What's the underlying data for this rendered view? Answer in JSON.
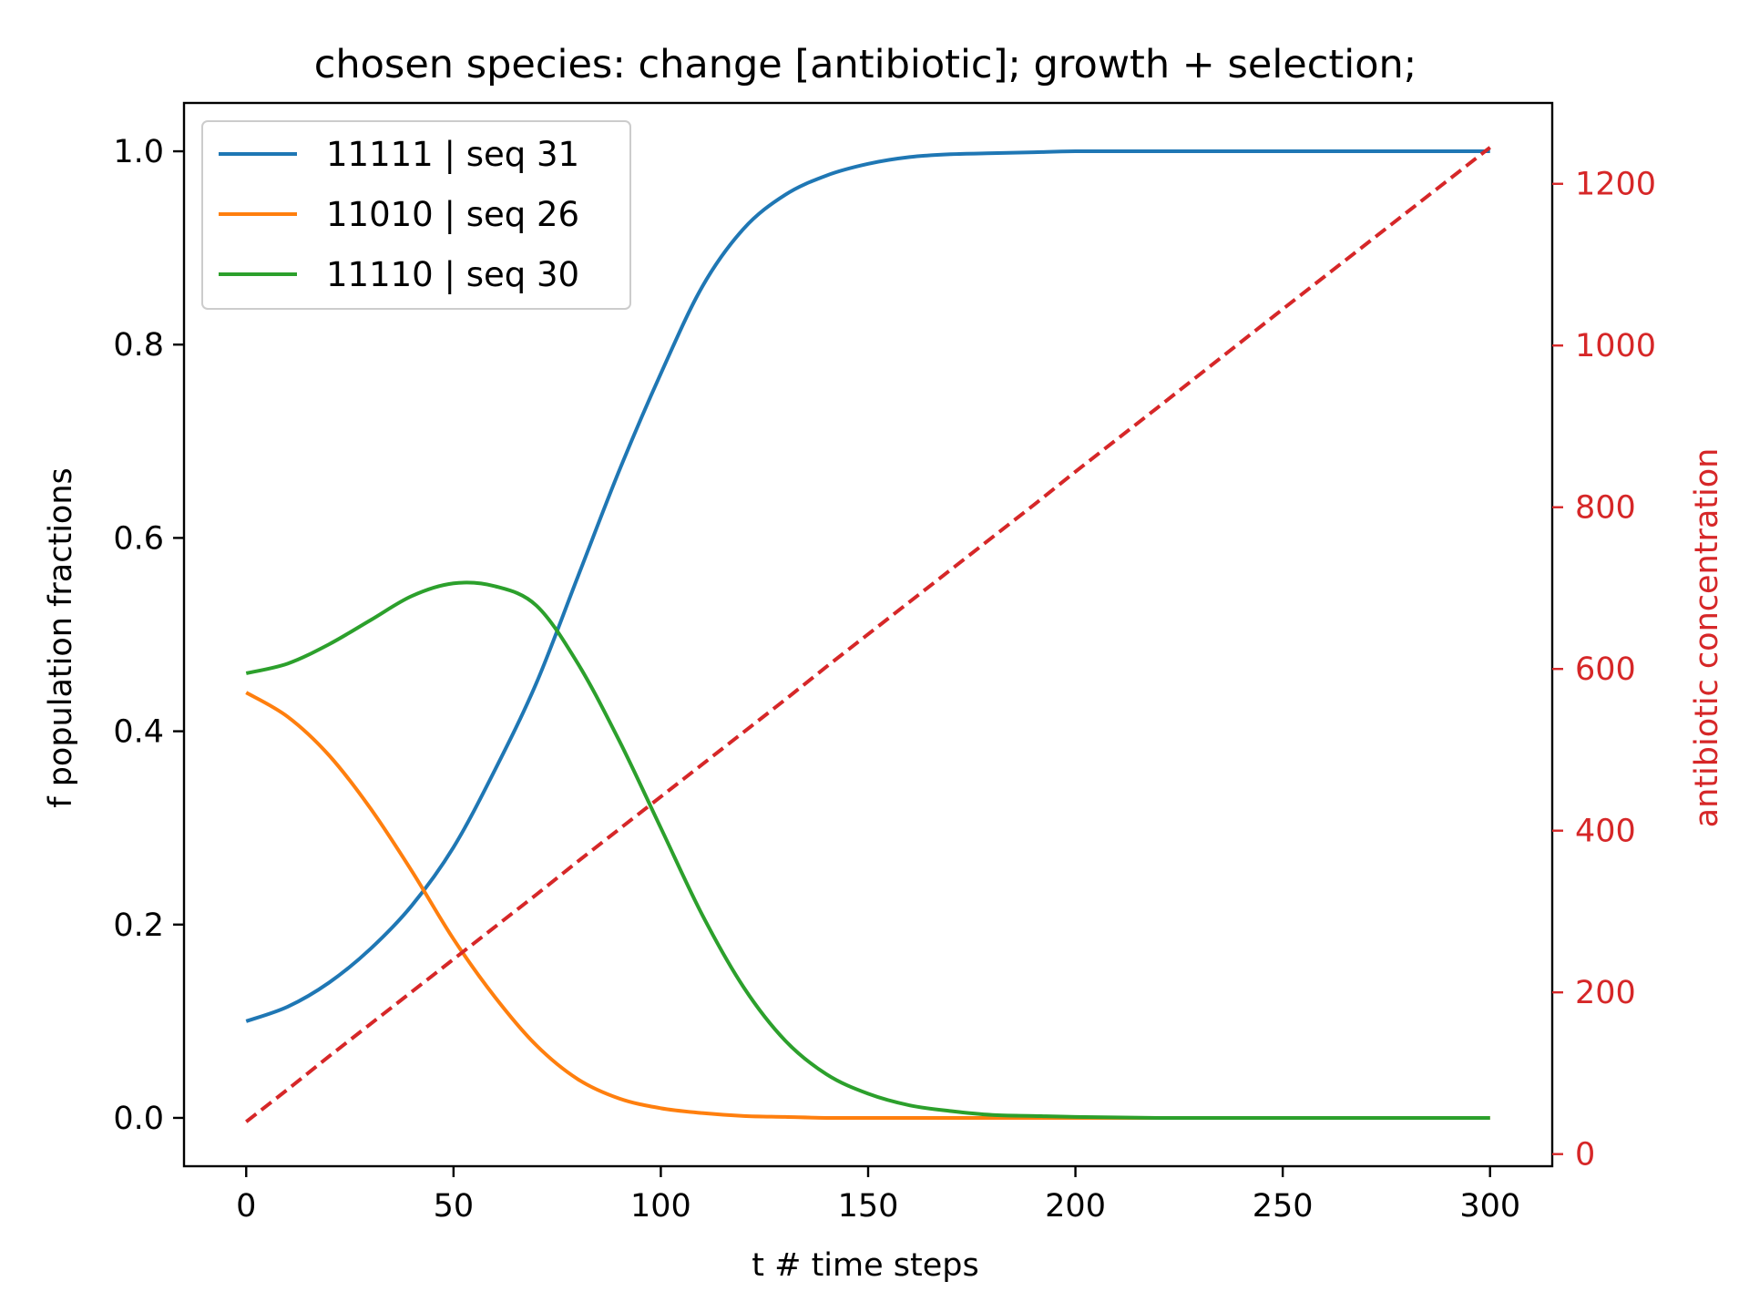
{
  "chart_data": {
    "type": "line",
    "title": "chosen species: change [antibiotic]; growth + selection;",
    "xlabel": "t # time steps",
    "ylabel": "f population fractions",
    "y2label": "antibiotic concentration",
    "xlim": [
      -15,
      315
    ],
    "ylim": [
      -0.05,
      1.05
    ],
    "y2lim": [
      -15,
      1300
    ],
    "xticks": [
      0,
      50,
      100,
      150,
      200,
      250,
      300
    ],
    "yticks": [
      0.0,
      0.2,
      0.4,
      0.6,
      0.8,
      1.0
    ],
    "ytick_labels": [
      "0.0",
      "0.2",
      "0.4",
      "0.6",
      "0.8",
      "1.0"
    ],
    "y2ticks": [
      0,
      200,
      400,
      600,
      800,
      1000,
      1200
    ],
    "legend_position": "top-left",
    "grid": false,
    "x": [
      0,
      10,
      20,
      30,
      40,
      50,
      60,
      70,
      80,
      90,
      100,
      110,
      120,
      130,
      140,
      150,
      160,
      170,
      180,
      190,
      200,
      220,
      250,
      300
    ],
    "series": [
      {
        "name": "11111 | seq 31",
        "color": "#1f77b4",
        "axis": "left",
        "style": "solid",
        "values": [
          0.1,
          0.115,
          0.14,
          0.175,
          0.22,
          0.28,
          0.36,
          0.45,
          0.56,
          0.67,
          0.77,
          0.86,
          0.92,
          0.955,
          0.975,
          0.987,
          0.994,
          0.997,
          0.998,
          0.999,
          1.0,
          1.0,
          1.0,
          1.0
        ]
      },
      {
        "name": "11010 | seq 26",
        "color": "#ff7f0e",
        "axis": "left",
        "style": "solid",
        "values": [
          0.44,
          0.415,
          0.375,
          0.32,
          0.255,
          0.185,
          0.125,
          0.075,
          0.04,
          0.02,
          0.01,
          0.005,
          0.002,
          0.001,
          0.0,
          0.0,
          0.0,
          0.0,
          0.0,
          0.0,
          0.0,
          0.0,
          0.0,
          0.0
        ]
      },
      {
        "name": "11110 | seq 30",
        "color": "#2ca02c",
        "axis": "left",
        "style": "solid",
        "values": [
          0.46,
          0.47,
          0.49,
          0.515,
          0.54,
          0.553,
          0.55,
          0.53,
          0.47,
          0.39,
          0.3,
          0.21,
          0.135,
          0.08,
          0.045,
          0.025,
          0.013,
          0.007,
          0.003,
          0.002,
          0.001,
          0.0,
          0.0,
          0.0
        ]
      },
      {
        "name": "",
        "color": "#d62728",
        "axis": "right",
        "style": "dashed",
        "values": [
          40,
          80,
          121,
          161,
          201,
          241,
          281,
          321,
          362,
          402,
          442,
          482,
          522,
          562,
          603,
          643,
          683,
          723,
          763,
          803,
          844,
          924,
          1045,
          1245
        ]
      }
    ]
  }
}
